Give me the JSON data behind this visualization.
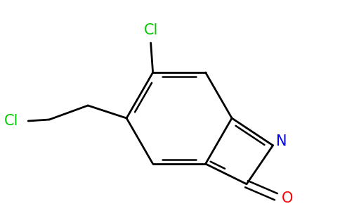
{
  "background_color": "#ffffff",
  "figsize": [
    4.84,
    3.0
  ],
  "dpi": 100,
  "bond_color": "#000000",
  "atom_colors": {
    "Cl": "#00cc00",
    "N": "#0000ff",
    "O": "#ff0000"
  },
  "lw": 2.0,
  "lw_dbl": 1.8,
  "label_fontsize": 15
}
